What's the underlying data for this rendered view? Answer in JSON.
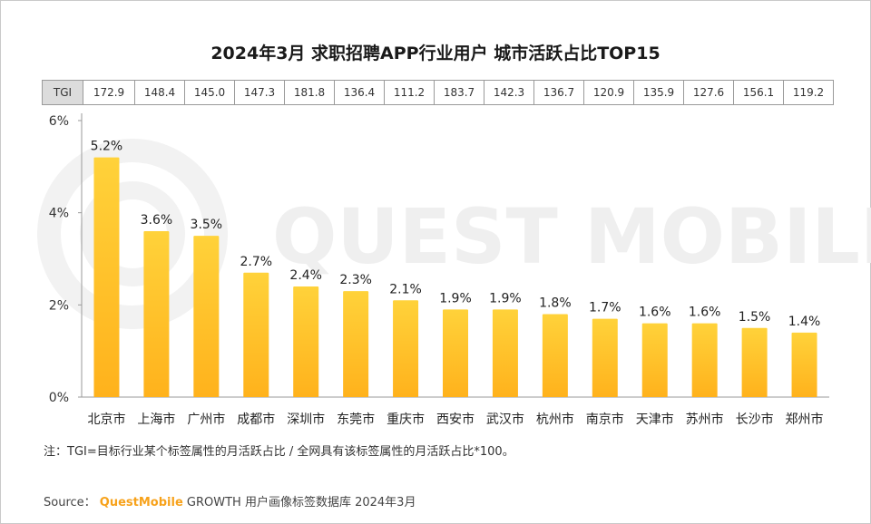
{
  "title": "2024年3月 求职招聘APP行业用户 城市活跃占比TOP15",
  "tgi_label": "TGI",
  "tgi_values": [
    "172.9",
    "148.4",
    "145.0",
    "147.3",
    "181.8",
    "136.4",
    "111.2",
    "183.7",
    "142.3",
    "136.7",
    "120.9",
    "135.9",
    "127.6",
    "156.1",
    "119.2"
  ],
  "watermark": "QUEST MOBILE",
  "note": "注：TGI=目标行业某个标签属性的月活跃占比 / 全网具有该标签属性的月活跃占比*100。",
  "source": {
    "label": "Source：",
    "brand": "QuestMobile",
    "text": "GROWTH 用户画像标签数据库 2024年3月"
  },
  "colors": {
    "bar_top": "#ffd23a",
    "bar_bottom": "#ffb21c",
    "axis": "#9a9a9a",
    "brand": "#f7a21b"
  },
  "chart_data": {
    "type": "bar",
    "title": "2024年3月 求职招聘APP行业用户 城市活跃占比TOP15",
    "categories": [
      "北京市",
      "上海市",
      "广州市",
      "成都市",
      "深圳市",
      "东莞市",
      "重庆市",
      "西安市",
      "武汉市",
      "杭州市",
      "南京市",
      "天津市",
      "苏州市",
      "长沙市",
      "郑州市"
    ],
    "values": [
      5.2,
      3.6,
      3.5,
      2.7,
      2.4,
      2.3,
      2.1,
      1.9,
      1.9,
      1.8,
      1.7,
      1.6,
      1.6,
      1.5,
      1.4
    ],
    "labels": [
      "5.2%",
      "3.6%",
      "3.5%",
      "2.7%",
      "2.4%",
      "2.3%",
      "2.1%",
      "1.9%",
      "1.9%",
      "1.8%",
      "1.7%",
      "1.6%",
      "1.6%",
      "1.5%",
      "1.4%"
    ],
    "ylim": [
      0,
      6
    ],
    "yticks": [
      0,
      2,
      4,
      6
    ],
    "ytick_labels": [
      "0%",
      "2%",
      "4%",
      "6%"
    ],
    "xlabel": "",
    "ylabel": "",
    "grid": false,
    "legend": "none"
  }
}
